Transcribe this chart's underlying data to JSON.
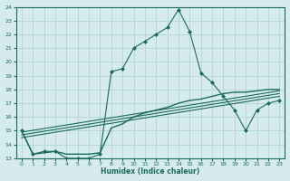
{
  "xlabel": "Humidex (Indice chaleur)",
  "xlim": [
    -0.5,
    23.5
  ],
  "ylim": [
    13,
    24
  ],
  "yticks": [
    13,
    14,
    15,
    16,
    17,
    18,
    19,
    20,
    21,
    22,
    23,
    24
  ],
  "xticks": [
    0,
    1,
    2,
    3,
    4,
    5,
    6,
    7,
    8,
    9,
    10,
    11,
    12,
    13,
    14,
    15,
    16,
    17,
    18,
    19,
    20,
    21,
    22,
    23
  ],
  "bg_color": "#d6ecec",
  "line_color": "#1a6b5a",
  "grid_color": "#b8d8d8",
  "main_line_x": [
    0,
    1,
    2,
    3,
    4,
    5,
    6,
    7,
    8,
    9,
    10,
    11,
    12,
    13,
    14,
    15,
    16,
    17,
    18,
    19,
    20,
    21,
    22,
    23
  ],
  "main_line_y": [
    15.0,
    13.3,
    13.5,
    13.5,
    13.0,
    13.0,
    13.0,
    13.3,
    19.3,
    19.5,
    21.0,
    21.5,
    22.0,
    22.5,
    23.8,
    22.2,
    19.2,
    18.5,
    17.5,
    16.5,
    15.0,
    16.5,
    17.0,
    17.2
  ],
  "smooth_line_x": [
    0,
    1,
    2,
    3,
    4,
    5,
    6,
    7,
    8,
    9,
    10,
    11,
    12,
    13,
    14,
    15,
    16,
    17,
    18,
    19,
    20,
    21,
    22,
    23
  ],
  "smooth_line_y": [
    15.0,
    13.3,
    13.4,
    13.5,
    13.3,
    13.3,
    13.3,
    13.4,
    15.2,
    15.5,
    16.0,
    16.3,
    16.5,
    16.7,
    17.0,
    17.2,
    17.3,
    17.5,
    17.7,
    17.8,
    17.8,
    17.9,
    18.0,
    18.0
  ],
  "trend1_x": [
    0,
    23
  ],
  "trend1_y": [
    14.5,
    17.5
  ],
  "trend2_x": [
    0,
    23
  ],
  "trend2_y": [
    14.7,
    17.7
  ],
  "trend3_x": [
    0,
    23
  ],
  "trend3_y": [
    14.9,
    17.9
  ]
}
